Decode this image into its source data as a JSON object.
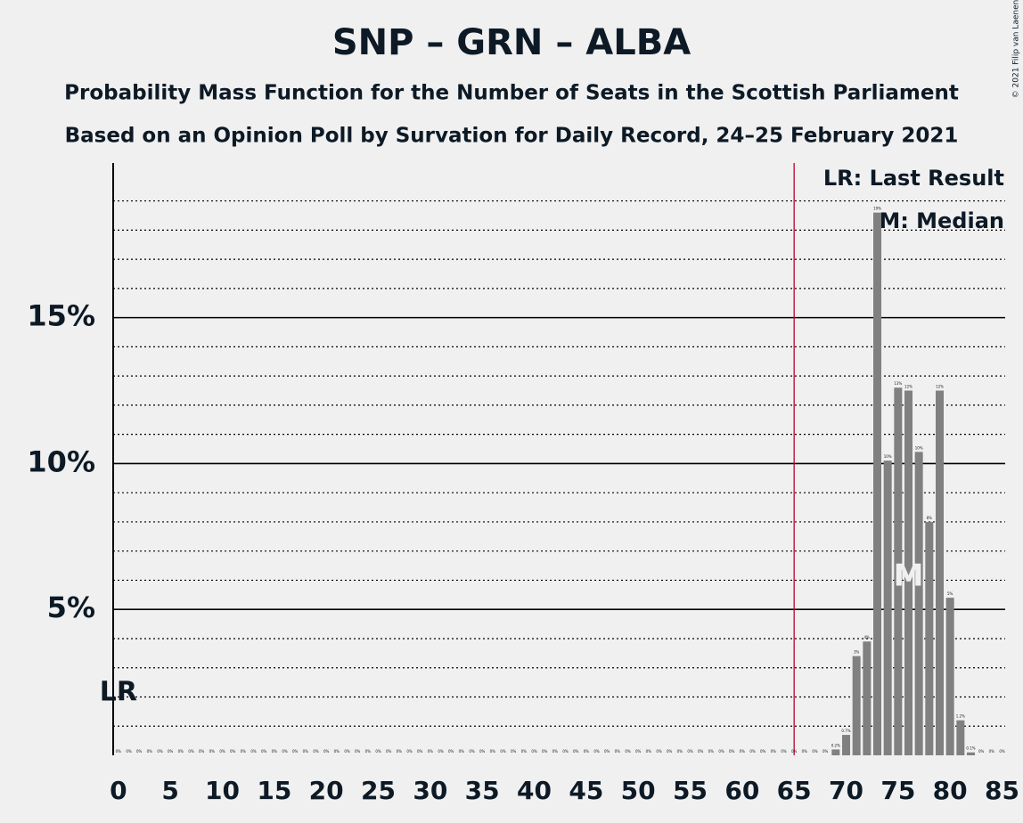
{
  "chart_data": {
    "type": "bar",
    "title": "SNP – GRN – ALBA",
    "subtitle": "Probability Mass Function for the Number of Seats in the Scottish Parliament",
    "subtitle2": "Based on an Opinion Poll by Survation for Daily Record, 24–25 February 2021",
    "copyright": "© 2021 Filip van Laenen",
    "legend_lr": "LR: Last Result",
    "legend_median": "M: Median",
    "x": [
      0,
      1,
      2,
      3,
      4,
      5,
      6,
      7,
      8,
      9,
      10,
      11,
      12,
      13,
      14,
      15,
      16,
      17,
      18,
      19,
      20,
      21,
      22,
      23,
      24,
      25,
      26,
      27,
      28,
      29,
      30,
      31,
      32,
      33,
      34,
      35,
      36,
      37,
      38,
      39,
      40,
      41,
      42,
      43,
      44,
      45,
      46,
      47,
      48,
      49,
      50,
      51,
      52,
      53,
      54,
      55,
      56,
      57,
      58,
      59,
      60,
      61,
      62,
      63,
      64,
      65,
      66,
      67,
      68,
      69,
      70,
      71,
      72,
      73,
      74,
      75,
      76,
      77,
      78,
      79,
      80,
      81,
      82,
      83,
      84,
      85
    ],
    "values": [
      0,
      0,
      0,
      0,
      0,
      0,
      0,
      0,
      0,
      0,
      0,
      0,
      0,
      0,
      0,
      0,
      0,
      0,
      0,
      0,
      0,
      0,
      0,
      0,
      0,
      0,
      0,
      0,
      0,
      0,
      0,
      0,
      0,
      0,
      0,
      0,
      0,
      0,
      0,
      0,
      0,
      0,
      0,
      0,
      0,
      0,
      0,
      0,
      0,
      0,
      0,
      0,
      0,
      0,
      0,
      0,
      0,
      0,
      0,
      0,
      0,
      0,
      0,
      0,
      0,
      0,
      0,
      0,
      0,
      0.2,
      0.7,
      3.4,
      3.9,
      18.6,
      10.1,
      12.6,
      12.5,
      10.4,
      8.0,
      12.5,
      5.4,
      1.2,
      0.1,
      0,
      0,
      0
    ],
    "value_labels": [
      "0%",
      "0%",
      "0%",
      "0%",
      "0%",
      "0%",
      "0%",
      "0%",
      "0%",
      "0%",
      "0%",
      "0%",
      "0%",
      "0%",
      "0%",
      "0%",
      "0%",
      "0%",
      "0%",
      "0%",
      "0%",
      "0%",
      "0%",
      "0%",
      "0%",
      "0%",
      "0%",
      "0%",
      "0%",
      "0%",
      "0%",
      "0%",
      "0%",
      "0%",
      "0%",
      "0%",
      "0%",
      "0%",
      "0%",
      "0%",
      "0%",
      "0%",
      "0%",
      "0%",
      "0%",
      "0%",
      "0%",
      "0%",
      "0%",
      "0%",
      "0%",
      "0%",
      "0%",
      "0%",
      "0%",
      "0%",
      "0%",
      "0%",
      "0%",
      "0%",
      "0%",
      "0%",
      "0%",
      "0%",
      "0%",
      "0%",
      "0%",
      "0%",
      "0%",
      "0.2%",
      "0.7%",
      "3%",
      "4%",
      "19%",
      "10%",
      "13%",
      "12%",
      "10%",
      "8%",
      "12%",
      "5%",
      "1.2%",
      "0.1%",
      "0%",
      "0%",
      "0%"
    ],
    "color": "#808080",
    "xlim": [
      -0.5,
      85.3
    ],
    "xticks": [
      0,
      5,
      10,
      15,
      20,
      25,
      30,
      35,
      40,
      45,
      50,
      55,
      60,
      65,
      70,
      75,
      80,
      85
    ],
    "ylim": [
      0,
      20.3
    ],
    "yticks": [
      {
        "value": 5,
        "label": "5%"
      },
      {
        "value": 10,
        "label": "10%"
      },
      {
        "value": 15,
        "label": "15%"
      }
    ],
    "minor_yticks": [
      1,
      2,
      3,
      4,
      6,
      7,
      8,
      9,
      11,
      12,
      13,
      14,
      16,
      17,
      18,
      19
    ],
    "majority": 65,
    "last_result": {
      "seat": 0,
      "label": "LR"
    },
    "median": {
      "seat": 76,
      "label": "M"
    }
  }
}
